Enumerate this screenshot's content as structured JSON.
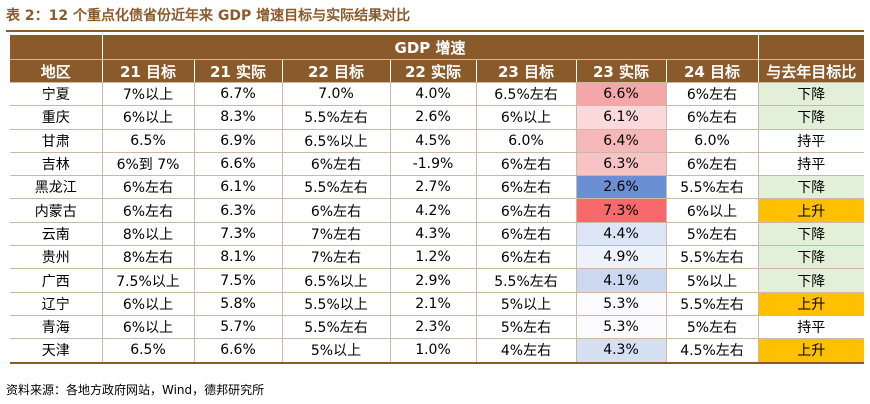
{
  "title": "表 2：12 个重点化债省份近年来 GDP 增速目标与实际结果对比",
  "header": {
    "group_label": "GDP 增速",
    "columns": [
      "地区",
      "21 目标",
      "21 实际",
      "22 目标",
      "22 实际",
      "23 目标",
      "23 实际",
      "24 目标",
      "与去年目标比"
    ]
  },
  "colors": {
    "header_bg": "#8b5a2b",
    "down_bg": "#e2efd9",
    "flat_bg": "#ffffff",
    "up_bg": "#ffc000"
  },
  "rows": [
    {
      "cells": [
        "宁夏",
        "7%以上",
        "6.7%",
        "7.0%",
        "4.0%",
        "6.5%左右",
        "6.6%",
        "6%左右",
        "下降"
      ],
      "actual23_bg": "#f4a6a8",
      "compare_bg": "#e2efd9"
    },
    {
      "cells": [
        "重庆",
        "6%以上",
        "8.3%",
        "5.5%左右",
        "2.6%",
        "6%以上",
        "6.1%",
        "6%左右",
        "下降"
      ],
      "actual23_bg": "#fbd8d9",
      "compare_bg": "#e2efd9"
    },
    {
      "cells": [
        "甘肃",
        "6.5%",
        "6.9%",
        "6.5%以上",
        "4.5%",
        "6.0%",
        "6.4%",
        "6.0%",
        "持平"
      ],
      "actual23_bg": "#f6b7b9",
      "compare_bg": "#ffffff"
    },
    {
      "cells": [
        "吉林",
        "6%到 7%",
        "6.6%",
        "6%左右",
        "-1.9%",
        "6%左右",
        "6.3%",
        "6%左右",
        "持平"
      ],
      "actual23_bg": "#f8c3c4",
      "compare_bg": "#ffffff"
    },
    {
      "cells": [
        "黑龙江",
        "6%左右",
        "6.1%",
        "5.5%左右",
        "2.7%",
        "6%左右",
        "2.6%",
        "5.5%左右",
        "下降"
      ],
      "actual23_bg": "#6b8fd4",
      "compare_bg": "#e2efd9"
    },
    {
      "cells": [
        "内蒙古",
        "6%左右",
        "6.3%",
        "6%左右",
        "4.2%",
        "6%左右",
        "7.3%",
        "6%以上",
        "上升"
      ],
      "actual23_bg": "#f8696b",
      "compare_bg": "#ffc000"
    },
    {
      "cells": [
        "云南",
        "8%以上",
        "7.3%",
        "7%左右",
        "4.3%",
        "6%左右",
        "4.4%",
        "5%左右",
        "下降"
      ],
      "actual23_bg": "#dce5f5",
      "compare_bg": "#e2efd9"
    },
    {
      "cells": [
        "贵州",
        "8%左右",
        "8.1%",
        "7%左右",
        "1.2%",
        "6%左右",
        "4.9%",
        "5.5%左右",
        "下降"
      ],
      "actual23_bg": "#eef2fa",
      "compare_bg": "#e2efd9"
    },
    {
      "cells": [
        "广西",
        "7.5%以上",
        "7.5%",
        "6.5%以上",
        "2.9%",
        "5.5%左右",
        "4.1%",
        "5%以上",
        "下降"
      ],
      "actual23_bg": "#cbd8f0",
      "compare_bg": "#e2efd9"
    },
    {
      "cells": [
        "辽宁",
        "6%以上",
        "5.8%",
        "5.5%以上",
        "2.1%",
        "5%以上",
        "5.3%",
        "5.5%左右",
        "上升"
      ],
      "actual23_bg": "#fbfbfe",
      "compare_bg": "#ffc000"
    },
    {
      "cells": [
        "青海",
        "6%以上",
        "5.7%",
        "5.5%左右",
        "2.3%",
        "5%左右",
        "5.3%",
        "5%左右",
        "持平"
      ],
      "actual23_bg": "#fbfbfe",
      "compare_bg": "#ffffff"
    },
    {
      "cells": [
        "天津",
        "6.5%",
        "6.6%",
        "5%以上",
        "1.0%",
        "4%左右",
        "4.3%",
        "4.5%左右",
        "上升"
      ],
      "actual23_bg": "#d6e0f3",
      "compare_bg": "#ffc000"
    }
  ],
  "source": "资料来源：各地方政府网站，Wind，德邦研究所"
}
